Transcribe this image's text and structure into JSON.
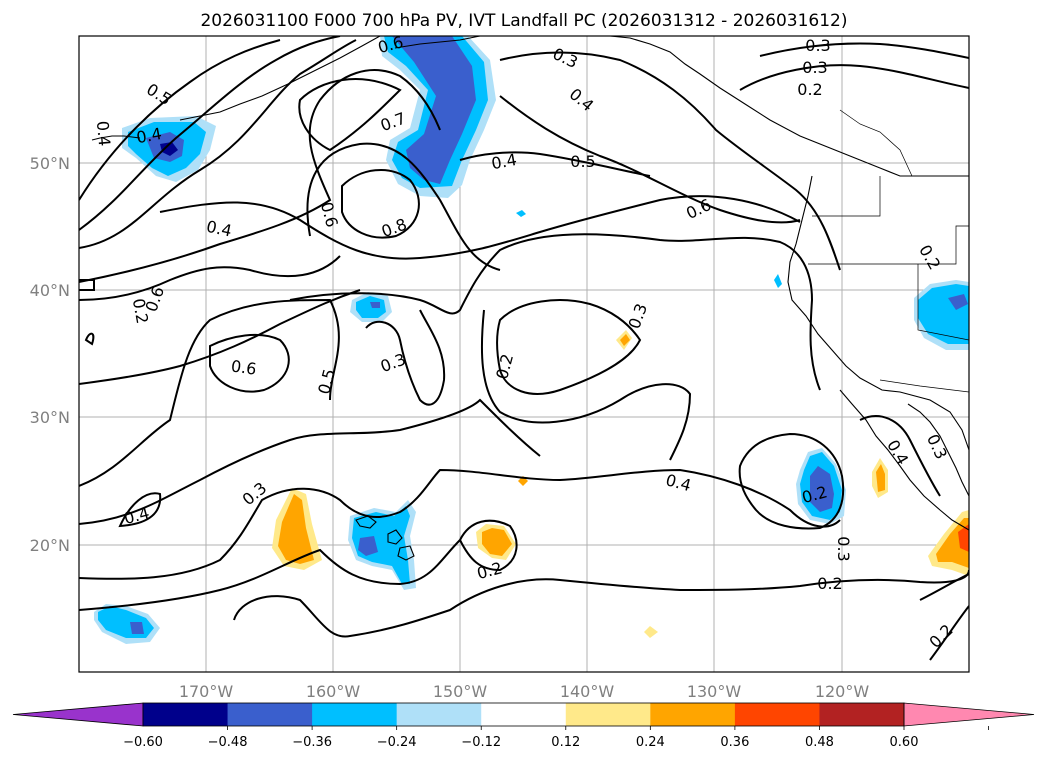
{
  "title": "2026031100 F000 700 hPa PV, IVT Landfall PC (2026031312 - 2026031612)",
  "map": {
    "lon_range": [
      -180,
      -110
    ],
    "lat_range": [
      10,
      60
    ],
    "lon_ticks": [
      -170,
      -160,
      -150,
      -140,
      -130,
      -120
    ],
    "lat_ticks": [
      20,
      30,
      40,
      50
    ],
    "lon_tick_labels": [
      "170°W",
      "160°W",
      "150°W",
      "140°W",
      "130°W",
      "120°W"
    ],
    "lat_tick_labels": [
      "20°N",
      "30°N",
      "40°N",
      "50°N"
    ]
  },
  "colorbar": {
    "levels": [
      "−0.60",
      "−0.48",
      "−0.36",
      "−0.24",
      "−0.12",
      "0.12",
      "0.24",
      "0.36",
      "0.48",
      "0.60"
    ],
    "colors": [
      "#9933cc",
      "#00008b",
      "#3a5fcd",
      "#00bfff",
      "#afe0f8",
      "#ffffff",
      "#ffe98a",
      "#ffa500",
      "#ff4500",
      "#b22222",
      "#ff88b0"
    ],
    "extend": "both"
  },
  "contour_labels": {
    "c1": "0.5",
    "c2": "0.3",
    "c3": "0.4",
    "c4": "0.3",
    "c5": "0.2",
    "c6": "0.7",
    "c7": "0.4",
    "c8": "0.5",
    "c9": "0.6",
    "c10": "0.6",
    "c11": "0.8",
    "c12": "0.4",
    "c13": "0.3",
    "c14": "0.2",
    "c15": "0.6",
    "c16": "0.5",
    "c17": "0.3",
    "c18": "0.6",
    "c19": "0.3",
    "c20": "0.2",
    "c21": "0.4",
    "c22": "0.3",
    "c23": "0.4",
    "c24": "0.2",
    "c25": "0.2",
    "c26": "0.3",
    "c27": "0.4",
    "c28": "0.3",
    "c29": "0.2",
    "c30": "0.2",
    "c31": "0.2",
    "c32": "0.4",
    "c33": "0.4",
    "c34": "0.6"
  }
}
